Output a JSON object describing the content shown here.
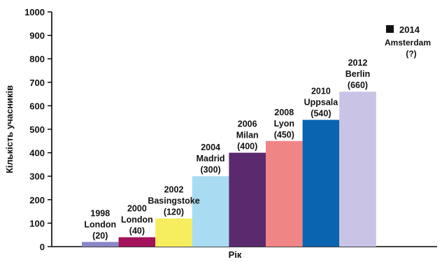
{
  "chart_data": {
    "type": "bar",
    "xlabel": "Рік",
    "ylabel": "Кількість учасників",
    "ylim": [
      0,
      1000
    ],
    "yticks": [
      0,
      100,
      200,
      300,
      400,
      500,
      600,
      700,
      800,
      900,
      1000
    ],
    "grid": false,
    "bars": [
      {
        "year": "1998",
        "city": "London",
        "value_label": "(20)",
        "value": 20,
        "color": "#8a86c8"
      },
      {
        "year": "2000",
        "city": "London",
        "value_label": "(40)",
        "value": 40,
        "color": "#a3125a"
      },
      {
        "year": "2002",
        "city": "Basingstoke",
        "value_label": "(120)",
        "value": 120,
        "color": "#f6ee5e"
      },
      {
        "year": "2004",
        "city": "Madrid",
        "value_label": "(300)",
        "value": 300,
        "color": "#a9dcf2"
      },
      {
        "year": "2006",
        "city": "Milan",
        "value_label": "(400)",
        "value": 400,
        "color": "#5b2a6e"
      },
      {
        "year": "2008",
        "city": "Lyon",
        "value_label": "(450)",
        "value": 450,
        "color": "#f08585"
      },
      {
        "year": "2010",
        "city": "Uppsala",
        "value_label": "(540)",
        "value": 540,
        "color": "#0a64b0"
      },
      {
        "year": "2012",
        "city": "Berlin",
        "value_label": "(660)",
        "value": 660,
        "color": "#c9c3e6"
      }
    ],
    "legend": {
      "year": "2014",
      "city": "Amsterdam",
      "value_label": "(?)",
      "marker_color": "#111111",
      "placement": "top-right"
    }
  }
}
